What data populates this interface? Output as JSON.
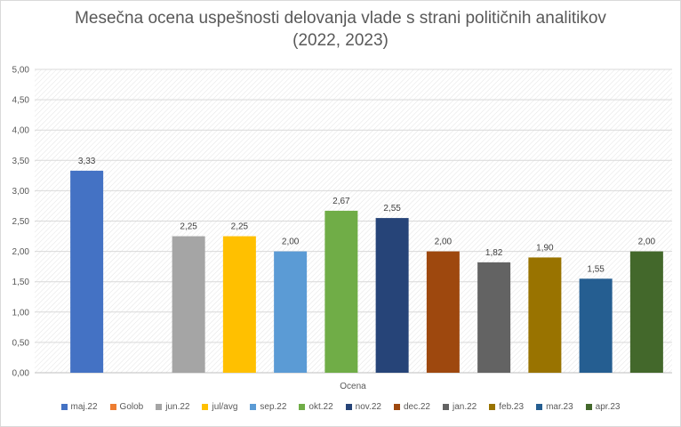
{
  "chart_data": {
    "type": "bar",
    "title": "Mesečna ocena uspešnosti delovanja vlade s strani političnih analitikov",
    "subtitle": "(2022, 2023)",
    "xlabel": "Ocena",
    "ylabel": "",
    "ylim": [
      0,
      5
    ],
    "y_ticks": [
      "0,00",
      "0,50",
      "1,00",
      "1,50",
      "2,00",
      "2,50",
      "3,00",
      "3,50",
      "4,00",
      "4,50",
      "5,00"
    ],
    "grid": true,
    "legend_position": "bottom",
    "series": [
      {
        "name": "maj.22",
        "value": 3.33,
        "label": "3,33",
        "color": "#4472c4"
      },
      {
        "name": "Golob",
        "value": null,
        "label": "",
        "color": "#ed7d31"
      },
      {
        "name": "jun.22",
        "value": 2.25,
        "label": "2,25",
        "color": "#a5a5a5"
      },
      {
        "name": "jul/avg",
        "value": 2.25,
        "label": "2,25",
        "color": "#ffc000"
      },
      {
        "name": "sep.22",
        "value": 2.0,
        "label": "2,00",
        "color": "#5b9bd5"
      },
      {
        "name": "okt.22",
        "value": 2.67,
        "label": "2,67",
        "color": "#70ad47"
      },
      {
        "name": "nov.22",
        "value": 2.55,
        "label": "2,55",
        "color": "#264478"
      },
      {
        "name": "dec.22",
        "value": 2.0,
        "label": "2,00",
        "color": "#9e480e"
      },
      {
        "name": "jan.22",
        "value": 1.82,
        "label": "1,82",
        "color": "#636363"
      },
      {
        "name": "feb.23",
        "value": 1.9,
        "label": "1,90",
        "color": "#997300"
      },
      {
        "name": "mar.23",
        "value": 1.55,
        "label": "1,55",
        "color": "#255e91"
      },
      {
        "name": "apr.23",
        "value": 2.0,
        "label": "2,00",
        "color": "#43682b"
      }
    ]
  }
}
